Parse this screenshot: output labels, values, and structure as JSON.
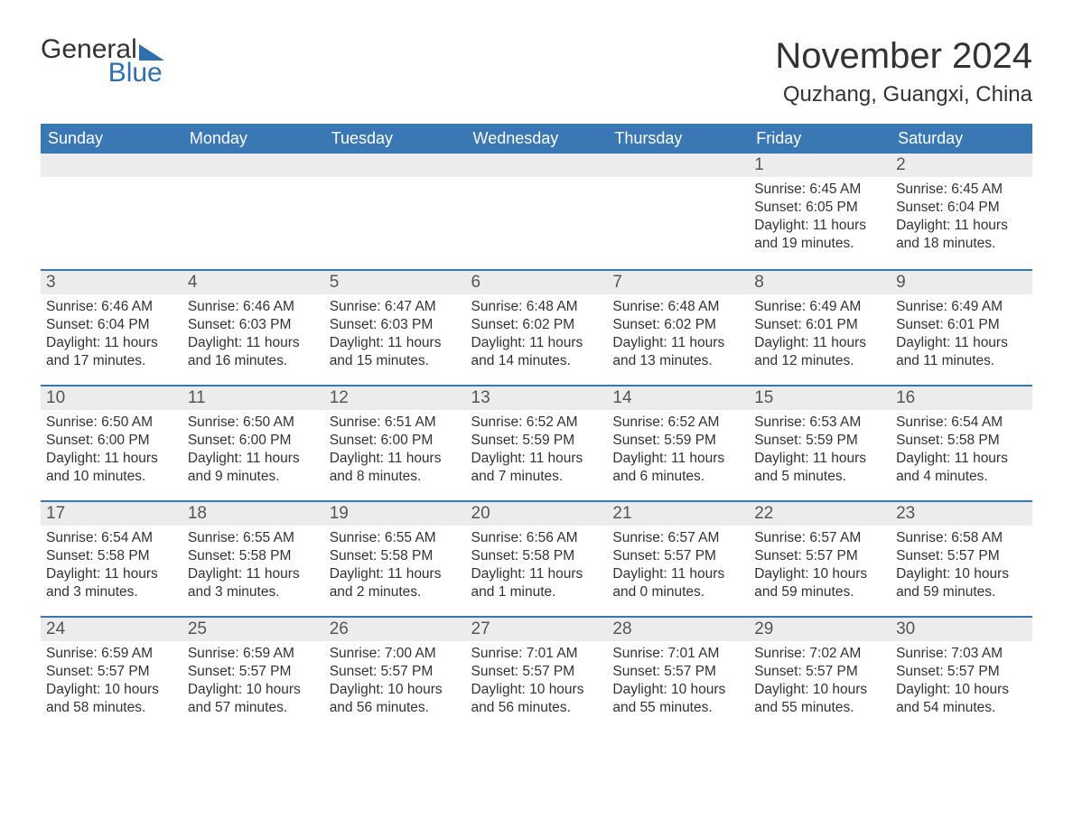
{
  "logo": {
    "text_top": "General",
    "text_bottom": "Blue",
    "brand_color": "#2f6fb0"
  },
  "title": "November 2024",
  "location": "Quzhang, Guangxi, China",
  "colors": {
    "header_bg": "#3a77b5",
    "header_text": "#ffffff",
    "daynum_bg": "#ececec",
    "border_top": "#3a77b5",
    "body_text": "#333333",
    "background": "#ffffff"
  },
  "weekdays": [
    "Sunday",
    "Monday",
    "Tuesday",
    "Wednesday",
    "Thursday",
    "Friday",
    "Saturday"
  ],
  "weeks": [
    [
      {
        "empty": true
      },
      {
        "empty": true
      },
      {
        "empty": true
      },
      {
        "empty": true
      },
      {
        "empty": true
      },
      {
        "day": "1",
        "sunrise": "Sunrise: 6:45 AM",
        "sunset": "Sunset: 6:05 PM",
        "daylight": "Daylight: 11 hours and 19 minutes."
      },
      {
        "day": "2",
        "sunrise": "Sunrise: 6:45 AM",
        "sunset": "Sunset: 6:04 PM",
        "daylight": "Daylight: 11 hours and 18 minutes."
      }
    ],
    [
      {
        "day": "3",
        "sunrise": "Sunrise: 6:46 AM",
        "sunset": "Sunset: 6:04 PM",
        "daylight": "Daylight: 11 hours and 17 minutes."
      },
      {
        "day": "4",
        "sunrise": "Sunrise: 6:46 AM",
        "sunset": "Sunset: 6:03 PM",
        "daylight": "Daylight: 11 hours and 16 minutes."
      },
      {
        "day": "5",
        "sunrise": "Sunrise: 6:47 AM",
        "sunset": "Sunset: 6:03 PM",
        "daylight": "Daylight: 11 hours and 15 minutes."
      },
      {
        "day": "6",
        "sunrise": "Sunrise: 6:48 AM",
        "sunset": "Sunset: 6:02 PM",
        "daylight": "Daylight: 11 hours and 14 minutes."
      },
      {
        "day": "7",
        "sunrise": "Sunrise: 6:48 AM",
        "sunset": "Sunset: 6:02 PM",
        "daylight": "Daylight: 11 hours and 13 minutes."
      },
      {
        "day": "8",
        "sunrise": "Sunrise: 6:49 AM",
        "sunset": "Sunset: 6:01 PM",
        "daylight": "Daylight: 11 hours and 12 minutes."
      },
      {
        "day": "9",
        "sunrise": "Sunrise: 6:49 AM",
        "sunset": "Sunset: 6:01 PM",
        "daylight": "Daylight: 11 hours and 11 minutes."
      }
    ],
    [
      {
        "day": "10",
        "sunrise": "Sunrise: 6:50 AM",
        "sunset": "Sunset: 6:00 PM",
        "daylight": "Daylight: 11 hours and 10 minutes."
      },
      {
        "day": "11",
        "sunrise": "Sunrise: 6:50 AM",
        "sunset": "Sunset: 6:00 PM",
        "daylight": "Daylight: 11 hours and 9 minutes."
      },
      {
        "day": "12",
        "sunrise": "Sunrise: 6:51 AM",
        "sunset": "Sunset: 6:00 PM",
        "daylight": "Daylight: 11 hours and 8 minutes."
      },
      {
        "day": "13",
        "sunrise": "Sunrise: 6:52 AM",
        "sunset": "Sunset: 5:59 PM",
        "daylight": "Daylight: 11 hours and 7 minutes."
      },
      {
        "day": "14",
        "sunrise": "Sunrise: 6:52 AM",
        "sunset": "Sunset: 5:59 PM",
        "daylight": "Daylight: 11 hours and 6 minutes."
      },
      {
        "day": "15",
        "sunrise": "Sunrise: 6:53 AM",
        "sunset": "Sunset: 5:59 PM",
        "daylight": "Daylight: 11 hours and 5 minutes."
      },
      {
        "day": "16",
        "sunrise": "Sunrise: 6:54 AM",
        "sunset": "Sunset: 5:58 PM",
        "daylight": "Daylight: 11 hours and 4 minutes."
      }
    ],
    [
      {
        "day": "17",
        "sunrise": "Sunrise: 6:54 AM",
        "sunset": "Sunset: 5:58 PM",
        "daylight": "Daylight: 11 hours and 3 minutes."
      },
      {
        "day": "18",
        "sunrise": "Sunrise: 6:55 AM",
        "sunset": "Sunset: 5:58 PM",
        "daylight": "Daylight: 11 hours and 3 minutes."
      },
      {
        "day": "19",
        "sunrise": "Sunrise: 6:55 AM",
        "sunset": "Sunset: 5:58 PM",
        "daylight": "Daylight: 11 hours and 2 minutes."
      },
      {
        "day": "20",
        "sunrise": "Sunrise: 6:56 AM",
        "sunset": "Sunset: 5:58 PM",
        "daylight": "Daylight: 11 hours and 1 minute."
      },
      {
        "day": "21",
        "sunrise": "Sunrise: 6:57 AM",
        "sunset": "Sunset: 5:57 PM",
        "daylight": "Daylight: 11 hours and 0 minutes."
      },
      {
        "day": "22",
        "sunrise": "Sunrise: 6:57 AM",
        "sunset": "Sunset: 5:57 PM",
        "daylight": "Daylight: 10 hours and 59 minutes."
      },
      {
        "day": "23",
        "sunrise": "Sunrise: 6:58 AM",
        "sunset": "Sunset: 5:57 PM",
        "daylight": "Daylight: 10 hours and 59 minutes."
      }
    ],
    [
      {
        "day": "24",
        "sunrise": "Sunrise: 6:59 AM",
        "sunset": "Sunset: 5:57 PM",
        "daylight": "Daylight: 10 hours and 58 minutes."
      },
      {
        "day": "25",
        "sunrise": "Sunrise: 6:59 AM",
        "sunset": "Sunset: 5:57 PM",
        "daylight": "Daylight: 10 hours and 57 minutes."
      },
      {
        "day": "26",
        "sunrise": "Sunrise: 7:00 AM",
        "sunset": "Sunset: 5:57 PM",
        "daylight": "Daylight: 10 hours and 56 minutes."
      },
      {
        "day": "27",
        "sunrise": "Sunrise: 7:01 AM",
        "sunset": "Sunset: 5:57 PM",
        "daylight": "Daylight: 10 hours and 56 minutes."
      },
      {
        "day": "28",
        "sunrise": "Sunrise: 7:01 AM",
        "sunset": "Sunset: 5:57 PM",
        "daylight": "Daylight: 10 hours and 55 minutes."
      },
      {
        "day": "29",
        "sunrise": "Sunrise: 7:02 AM",
        "sunset": "Sunset: 5:57 PM",
        "daylight": "Daylight: 10 hours and 55 minutes."
      },
      {
        "day": "30",
        "sunrise": "Sunrise: 7:03 AM",
        "sunset": "Sunset: 5:57 PM",
        "daylight": "Daylight: 10 hours and 54 minutes."
      }
    ]
  ]
}
